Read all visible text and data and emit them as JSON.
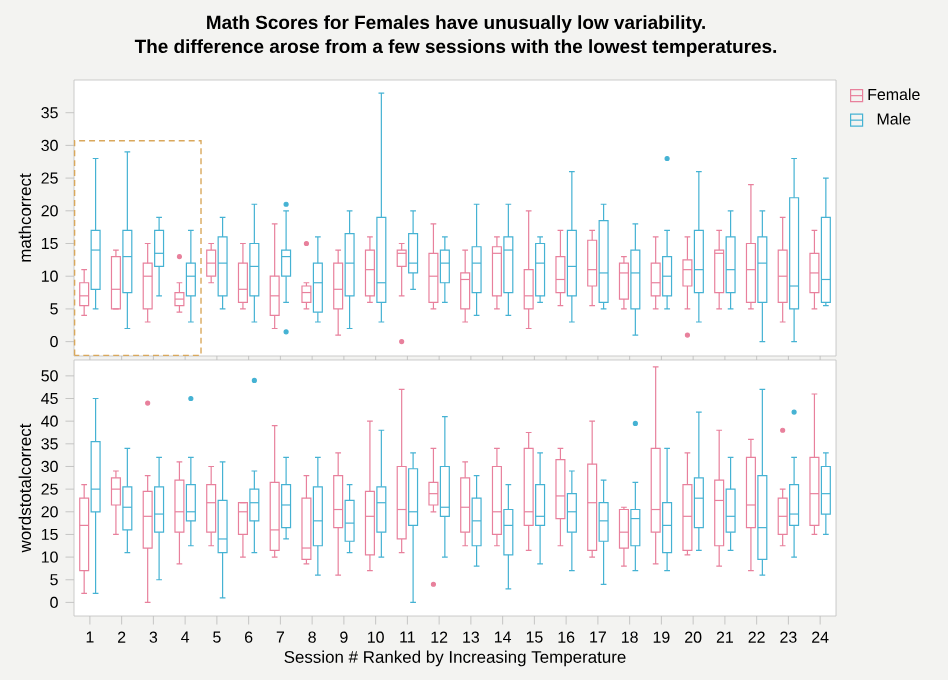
{
  "chart_data": [
    {
      "type": "box",
      "title": "Math Scores for Females have unusually low variability.",
      "subtitle": "The difference arose from a few sessions with the lowest temperatures.",
      "ylabel": "mathcorrect",
      "categories": [
        "1",
        "2",
        "3",
        "4",
        "5",
        "6",
        "7",
        "8",
        "9",
        "10",
        "11",
        "12",
        "13",
        "14",
        "15",
        "16",
        "17",
        "18",
        "19",
        "20",
        "21",
        "22",
        "23",
        "24"
      ],
      "ylim": [
        -2.2,
        40
      ],
      "yticks": [
        0,
        5,
        10,
        15,
        20,
        25,
        30,
        35
      ],
      "tick_labels": "y",
      "legend": "top right",
      "marker": "circle",
      "series": [
        {
          "name": "Female",
          "color": "#e8809c",
          "boxes": [
            {
              "low": 4,
              "q1": 5.5,
              "median": 7,
              "q3": 9,
              "high": 11
            },
            {
              "low": 5,
              "q1": 5,
              "median": 8,
              "q3": 13,
              "high": 14
            },
            {
              "low": 3,
              "q1": 5,
              "median": 10,
              "q3": 12,
              "high": 15
            },
            {
              "low": 4.5,
              "q1": 5.5,
              "median": 6.5,
              "q3": 7.5,
              "high": 9,
              "outliers": [
                13
              ]
            },
            {
              "low": 9,
              "q1": 10,
              "median": 12,
              "q3": 14,
              "high": 15
            },
            {
              "low": 5,
              "q1": 6,
              "median": 8,
              "q3": 12,
              "high": 15
            },
            {
              "low": 2,
              "q1": 4,
              "median": 7,
              "q3": 10,
              "high": 18
            },
            {
              "low": 5,
              "q1": 6,
              "median": 7.5,
              "q3": 8.5,
              "high": 9,
              "outliers": [
                15
              ]
            },
            {
              "low": 1,
              "q1": 5,
              "median": 8,
              "q3": 12,
              "high": 14
            },
            {
              "low": 6,
              "q1": 7,
              "median": 11,
              "q3": 14,
              "high": 16
            },
            {
              "low": 7,
              "q1": 11.5,
              "median": 13.5,
              "q3": 14,
              "high": 15,
              "outliers": [
                0
              ]
            },
            {
              "low": 5,
              "q1": 6,
              "median": 10,
              "q3": 13.5,
              "high": 18
            },
            {
              "low": 3,
              "q1": 5,
              "median": 9.5,
              "q3": 10.5,
              "high": 14
            },
            {
              "low": 5,
              "q1": 7,
              "median": 13.5,
              "q3": 14.5,
              "high": 16
            },
            {
              "low": 2,
              "q1": 5,
              "median": 7,
              "q3": 11,
              "high": 20
            },
            {
              "low": 5.5,
              "q1": 7.5,
              "median": 9.5,
              "q3": 13,
              "high": 17
            },
            {
              "low": 5.5,
              "q1": 8.5,
              "median": 11,
              "q3": 15.5,
              "high": 17
            },
            {
              "low": 5,
              "q1": 6.5,
              "median": 10.5,
              "q3": 12,
              "high": 13
            },
            {
              "low": 5,
              "q1": 7,
              "median": 9,
              "q3": 12,
              "high": 16
            },
            {
              "low": 5,
              "q1": 8.5,
              "median": 11,
              "q3": 12.5,
              "high": 16,
              "outliers": [
                1
              ]
            },
            {
              "low": 5,
              "q1": 7.5,
              "median": 13.5,
              "q3": 14,
              "high": 17
            },
            {
              "low": 5,
              "q1": 6,
              "median": 11,
              "q3": 15,
              "high": 24
            },
            {
              "low": 3,
              "q1": 6,
              "median": 10,
              "q3": 14,
              "high": 19
            },
            {
              "low": 5,
              "q1": 7.5,
              "median": 10.5,
              "q3": 13.5,
              "high": 17
            }
          ]
        },
        {
          "name": "Male",
          "color": "#45b2d3",
          "boxes": [
            {
              "low": 5,
              "q1": 8,
              "median": 14,
              "q3": 17,
              "high": 28
            },
            {
              "low": 2,
              "q1": 7.5,
              "median": 13,
              "q3": 17,
              "high": 29
            },
            {
              "low": 7,
              "q1": 11.5,
              "median": 13.5,
              "q3": 17,
              "high": 19
            },
            {
              "low": 3,
              "q1": 7,
              "median": 10,
              "q3": 12,
              "high": 17
            },
            {
              "low": 5,
              "q1": 7,
              "median": 12,
              "q3": 16,
              "high": 19
            },
            {
              "low": 3,
              "q1": 7,
              "median": 11.5,
              "q3": 15,
              "high": 21
            },
            {
              "low": 6,
              "q1": 10,
              "median": 13,
              "q3": 14,
              "high": 20,
              "outliers": [
                1.5,
                21
              ]
            },
            {
              "low": 3,
              "q1": 4.5,
              "median": 9,
              "q3": 12,
              "high": 16
            },
            {
              "low": 2,
              "q1": 7,
              "median": 12,
              "q3": 16.5,
              "high": 20
            },
            {
              "low": 3,
              "q1": 6,
              "median": 9,
              "q3": 19,
              "high": 38
            },
            {
              "low": 8,
              "q1": 10.5,
              "median": 12,
              "q3": 16.5,
              "high": 20
            },
            {
              "low": 6,
              "q1": 9,
              "median": 12,
              "q3": 14,
              "high": 16
            },
            {
              "low": 4,
              "q1": 7.5,
              "median": 12,
              "q3": 14.5,
              "high": 21
            },
            {
              "low": 4,
              "q1": 7.5,
              "median": 14,
              "q3": 16,
              "high": 21
            },
            {
              "low": 6,
              "q1": 7,
              "median": 12,
              "q3": 15,
              "high": 16
            },
            {
              "low": 3,
              "q1": 7,
              "median": 11.5,
              "q3": 17,
              "high": 26
            },
            {
              "low": 5,
              "q1": 6,
              "median": 10.5,
              "q3": 18.5,
              "high": 21
            },
            {
              "low": 1,
              "q1": 5,
              "median": 10.5,
              "q3": 14,
              "high": 18
            },
            {
              "low": 5,
              "q1": 7,
              "median": 10,
              "q3": 13,
              "high": 17,
              "outliers": [
                28
              ]
            },
            {
              "low": 3,
              "q1": 7.5,
              "median": 11,
              "q3": 17,
              "high": 26
            },
            {
              "low": 5,
              "q1": 7.5,
              "median": 11,
              "q3": 16,
              "high": 20
            },
            {
              "low": 0,
              "q1": 6,
              "median": 12,
              "q3": 16,
              "high": 20
            },
            {
              "low": 0,
              "q1": 5,
              "median": 8.5,
              "q3": 22,
              "high": 28
            },
            {
              "low": 5.5,
              "q1": 6,
              "median": 9.5,
              "q3": 19,
              "high": 25
            }
          ]
        }
      ]
    },
    {
      "type": "box",
      "xlabel": "Session # Ranked by Increasing Temperature",
      "ylabel": "wordstotalcorrect",
      "categories": [
        "1",
        "2",
        "3",
        "4",
        "5",
        "6",
        "7",
        "8",
        "9",
        "10",
        "11",
        "12",
        "13",
        "14",
        "15",
        "16",
        "17",
        "18",
        "19",
        "20",
        "21",
        "22",
        "23",
        "24"
      ],
      "ylim": [
        -3,
        53.5
      ],
      "yticks": [
        0,
        5,
        10,
        15,
        20,
        25,
        30,
        35,
        40,
        45,
        50
      ],
      "marker": "circle",
      "series": [
        {
          "color": "#e8809c",
          "boxes": [
            {
              "low": 2,
              "q1": 7,
              "median": 17,
              "q3": 23,
              "high": 26
            },
            {
              "low": 15,
              "q1": 21.5,
              "median": 25,
              "q3": 27.5,
              "high": 29
            },
            {
              "low": 0,
              "q1": 12,
              "median": 19,
              "q3": 24.5,
              "high": 28,
              "outliers": [
                44
              ]
            },
            {
              "low": 8.5,
              "q1": 15.5,
              "median": 20,
              "q3": 27,
              "high": 31
            },
            {
              "low": 12.5,
              "q1": 15.5,
              "median": 22,
              "q3": 26,
              "high": 30
            },
            {
              "low": 10,
              "q1": 15,
              "median": 20,
              "q3": 22,
              "high": 22
            },
            {
              "low": 10,
              "q1": 11.5,
              "median": 16,
              "q3": 26.5,
              "high": 39
            },
            {
              "low": 8.5,
              "q1": 9.5,
              "median": 12,
              "q3": 23,
              "high": 28
            },
            {
              "low": 6,
              "q1": 16.5,
              "median": 20.5,
              "q3": 28,
              "high": 33
            },
            {
              "low": 7,
              "q1": 10.5,
              "median": 19,
              "q3": 24.5,
              "high": 40
            },
            {
              "low": 11,
              "q1": 14,
              "median": 20.5,
              "q3": 30,
              "high": 47
            },
            {
              "low": 20,
              "q1": 21.5,
              "median": 24,
              "q3": 26.5,
              "high": 34,
              "outliers": [
                4
              ]
            },
            {
              "low": 12.5,
              "q1": 15.5,
              "median": 21,
              "q3": 27.5,
              "high": 31
            },
            {
              "low": 12.5,
              "q1": 15,
              "median": 20,
              "q3": 30,
              "high": 34
            },
            {
              "low": 11.5,
              "q1": 17,
              "median": 20,
              "q3": 34,
              "high": 37.5
            },
            {
              "low": 12.5,
              "q1": 18.5,
              "median": 23.5,
              "q3": 31.5,
              "high": 34
            },
            {
              "low": 10,
              "q1": 11.5,
              "median": 22,
              "q3": 30.5,
              "high": 40
            },
            {
              "low": 8,
              "q1": 12,
              "median": 15.5,
              "q3": 20.5,
              "high": 21
            },
            {
              "low": 8.5,
              "q1": 15.5,
              "median": 20.5,
              "q3": 34,
              "high": 52
            },
            {
              "low": 10.5,
              "q1": 11.5,
              "median": 19,
              "q3": 26,
              "high": 33
            },
            {
              "low": 8,
              "q1": 12.5,
              "median": 22.5,
              "q3": 27,
              "high": 38
            },
            {
              "low": 7,
              "q1": 16.5,
              "median": 21.5,
              "q3": 32,
              "high": 36
            },
            {
              "low": 12.5,
              "q1": 15,
              "median": 19,
              "q3": 23,
              "high": 25,
              "outliers": [
                38
              ]
            },
            {
              "low": 15,
              "q1": 17,
              "median": 24,
              "q3": 32,
              "high": 46
            }
          ]
        },
        {
          "color": "#45b2d3",
          "boxes": [
            {
              "low": 2,
              "q1": 20,
              "median": 25,
              "q3": 35.5,
              "high": 45
            },
            {
              "low": 11,
              "q1": 16,
              "median": 21,
              "q3": 25.5,
              "high": 34
            },
            {
              "low": 5,
              "q1": 15.5,
              "median": 19.5,
              "q3": 25.5,
              "high": 32
            },
            {
              "low": 12.5,
              "q1": 18,
              "median": 20,
              "q3": 26,
              "high": 32,
              "outliers": [
                45
              ]
            },
            {
              "low": 1,
              "q1": 11,
              "median": 14,
              "q3": 22.5,
              "high": 31
            },
            {
              "low": 11,
              "q1": 18,
              "median": 22,
              "q3": 25,
              "high": 29,
              "outliers": [
                49
              ]
            },
            {
              "low": 14,
              "q1": 16.5,
              "median": 21.5,
              "q3": 26,
              "high": 32
            },
            {
              "low": 6,
              "q1": 12.5,
              "median": 18,
              "q3": 25.5,
              "high": 32
            },
            {
              "low": 11,
              "q1": 13.5,
              "median": 17.5,
              "q3": 22.5,
              "high": 26
            },
            {
              "low": 10,
              "q1": 15.5,
              "median": 22,
              "q3": 25.5,
              "high": 38
            },
            {
              "low": 0,
              "q1": 17,
              "median": 20,
              "q3": 29.5,
              "high": 33
            },
            {
              "low": 10,
              "q1": 19,
              "median": 21,
              "q3": 30,
              "high": 41
            },
            {
              "low": 8,
              "q1": 12.5,
              "median": 18,
              "q3": 23,
              "high": 28
            },
            {
              "low": 3,
              "q1": 10.5,
              "median": 17,
              "q3": 20.5,
              "high": 26
            },
            {
              "low": 8.5,
              "q1": 17,
              "median": 19,
              "q3": 26,
              "high": 33
            },
            {
              "low": 7,
              "q1": 15.5,
              "median": 20,
              "q3": 24,
              "high": 29
            },
            {
              "low": 4,
              "q1": 13.5,
              "median": 18,
              "q3": 22,
              "high": 27
            },
            {
              "low": 7,
              "q1": 12.5,
              "median": 18.5,
              "q3": 20.5,
              "high": 26.5,
              "outliers": [
                39.5
              ]
            },
            {
              "low": 7,
              "q1": 11,
              "median": 17,
              "q3": 22,
              "high": 34
            },
            {
              "low": 11.5,
              "q1": 16.5,
              "median": 23,
              "q3": 27.5,
              "high": 42
            },
            {
              "low": 11.5,
              "q1": 15.5,
              "median": 19,
              "q3": 25,
              "high": 32
            },
            {
              "low": 6,
              "q1": 9.5,
              "median": 16.5,
              "q3": 28,
              "high": 47
            },
            {
              "low": 10,
              "q1": 17,
              "median": 19.5,
              "q3": 26,
              "high": 32,
              "outliers": [
                42
              ]
            },
            {
              "low": 15,
              "q1": 19.5,
              "median": 24,
              "q3": 30,
              "high": 33
            }
          ]
        }
      ]
    }
  ]
}
